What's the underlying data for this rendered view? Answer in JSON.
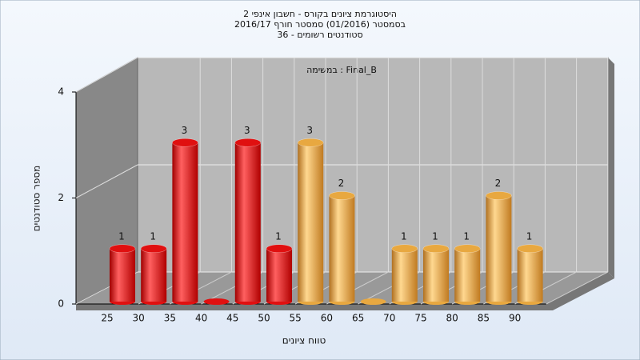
{
  "chart_data": {
    "type": "bar",
    "title": [
      "היסטוגרמת ציונים בקורס - חשבון אינפי 2",
      "בסמסטר  (01/2016)  סמסטר חורף 2016/17",
      "סטודנטים רשומים - 36"
    ],
    "subtitle": "במשימה : Final_B",
    "x_label": "טווח ציונים",
    "y_label": "מספר סטודנטים",
    "categories": [
      "25",
      "30",
      "35",
      "40",
      "45",
      "50",
      "55",
      "60",
      "65",
      "70",
      "75",
      "80",
      "85",
      "90"
    ],
    "values": [
      1,
      1,
      3,
      0,
      3,
      1,
      3,
      2,
      0,
      1,
      1,
      1,
      2,
      1
    ],
    "colors": [
      "#e01010",
      "#e01010",
      "#e01010",
      "#e01010",
      "#e01010",
      "#e01010",
      "#e8a840",
      "#e8a840",
      "#e8a840",
      "#e8a840",
      "#e8a840",
      "#e8a840",
      "#e8a840",
      "#e8a840"
    ],
    "ylim": [
      0,
      4
    ],
    "yticks": [
      0,
      2,
      4
    ],
    "grid": true
  }
}
